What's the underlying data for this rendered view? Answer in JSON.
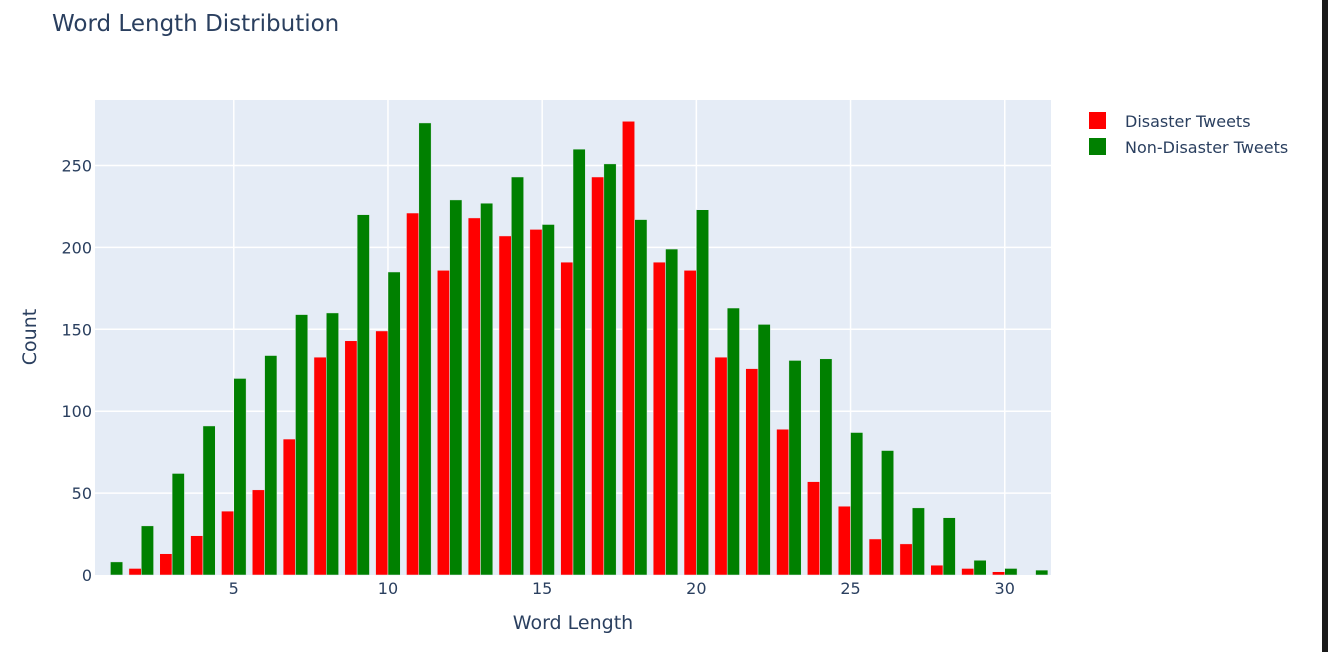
{
  "chart_data": {
    "type": "bar",
    "title": "Word Length Distribution",
    "xlabel": "Word Length",
    "ylabel": "Count",
    "xlim": [
      0.5,
      31.5
    ],
    "ylim": [
      0,
      290
    ],
    "x_ticks": [
      5,
      10,
      15,
      20,
      25,
      30
    ],
    "y_ticks": [
      0,
      50,
      100,
      150,
      200,
      250
    ],
    "grid": true,
    "legend_position": "top-right",
    "series": [
      {
        "name": "Disaster Tweets",
        "color": "#ff0000",
        "points": [
          [
            2,
            4
          ],
          [
            3,
            13
          ],
          [
            4,
            24
          ],
          [
            5,
            39
          ],
          [
            6,
            52
          ],
          [
            7,
            83
          ],
          [
            8,
            133
          ],
          [
            9,
            143
          ],
          [
            10,
            149
          ],
          [
            11,
            221
          ],
          [
            12,
            186
          ],
          [
            13,
            218
          ],
          [
            14,
            207
          ],
          [
            15,
            211
          ],
          [
            16,
            191
          ],
          [
            17,
            243
          ],
          [
            18,
            277
          ],
          [
            19,
            191
          ],
          [
            20,
            186
          ],
          [
            21,
            133
          ],
          [
            22,
            126
          ],
          [
            23,
            89
          ],
          [
            24,
            57
          ],
          [
            25,
            42
          ],
          [
            26,
            22
          ],
          [
            27,
            19
          ],
          [
            28,
            6
          ],
          [
            29,
            4
          ],
          [
            30,
            2
          ]
        ]
      },
      {
        "name": "Non-Disaster Tweets",
        "color": "#008000",
        "points": [
          [
            1,
            8
          ],
          [
            2,
            30
          ],
          [
            3,
            62
          ],
          [
            4,
            91
          ],
          [
            5,
            120
          ],
          [
            6,
            134
          ],
          [
            7,
            159
          ],
          [
            8,
            160
          ],
          [
            9,
            220
          ],
          [
            10,
            185
          ],
          [
            11,
            276
          ],
          [
            12,
            229
          ],
          [
            13,
            227
          ],
          [
            14,
            243
          ],
          [
            15,
            214
          ],
          [
            16,
            260
          ],
          [
            17,
            251
          ],
          [
            18,
            217
          ],
          [
            19,
            199
          ],
          [
            20,
            223
          ],
          [
            21,
            163
          ],
          [
            22,
            153
          ],
          [
            23,
            131
          ],
          [
            24,
            132
          ],
          [
            25,
            87
          ],
          [
            26,
            76
          ],
          [
            27,
            41
          ],
          [
            28,
            35
          ],
          [
            29,
            9
          ],
          [
            30,
            4
          ],
          [
            31,
            3
          ]
        ]
      }
    ]
  }
}
